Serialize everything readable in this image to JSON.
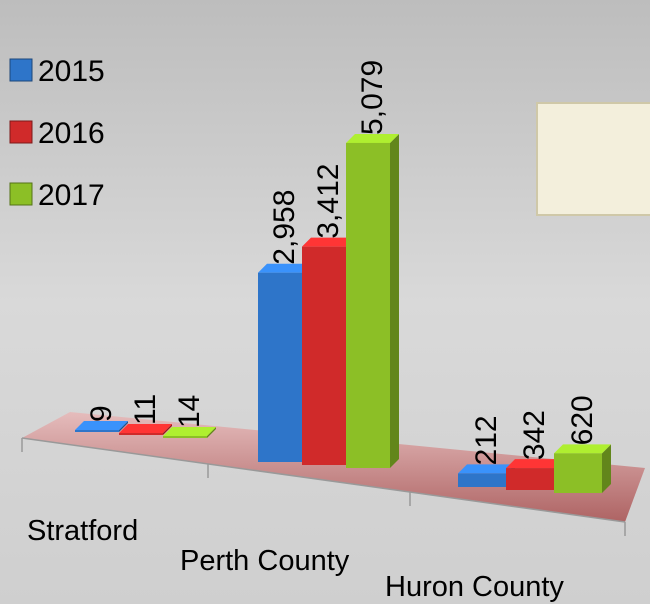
{
  "chart_data": {
    "type": "bar",
    "categories": [
      "Stratford",
      "Perth County",
      "Huron County"
    ],
    "series": [
      {
        "name": "2015",
        "color": "#2e75c9",
        "values": [
          9,
          2958,
          212
        ],
        "value_labels": [
          "9",
          "2,958",
          "212"
        ]
      },
      {
        "name": "2016",
        "color": "#d02a2a",
        "values": [
          11,
          3412,
          342
        ],
        "value_labels": [
          "11",
          "3,412",
          "342"
        ]
      },
      {
        "name": "2017",
        "color": "#8cbf26",
        "values": [
          14,
          5079,
          620
        ],
        "value_labels": [
          "14",
          "5,079",
          "620"
        ]
      }
    ]
  }
}
